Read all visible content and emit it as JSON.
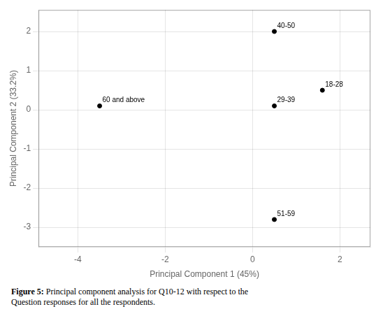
{
  "chart_data": {
    "type": "scatter",
    "x": [
      0.5,
      1.6,
      -3.5,
      0.5,
      0.5
    ],
    "values": [
      2.0,
      0.5,
      0.1,
      0.1,
      -2.8
    ],
    "point_labels": [
      "40-50",
      "18-28",
      "60 and above",
      "29-39",
      "51-59"
    ],
    "color": "#000000",
    "xlabel": "Principal Component 1 (45%)",
    "ylabel": "Principal Component 2 (33.2%)",
    "xlim": [
      -4.9,
      2.7
    ],
    "ylim": [
      -3.5,
      2.55
    ],
    "xticks": [
      -4,
      -2,
      0,
      2
    ],
    "yticks": [
      -3,
      -2,
      -1,
      0,
      1,
      2
    ],
    "grid": true,
    "caption": {
      "bold": "Figure 5:",
      "lines": [
        "Principal component analysis for Q10-12 with respect to the",
        "Question responses for all the respondents."
      ]
    }
  }
}
